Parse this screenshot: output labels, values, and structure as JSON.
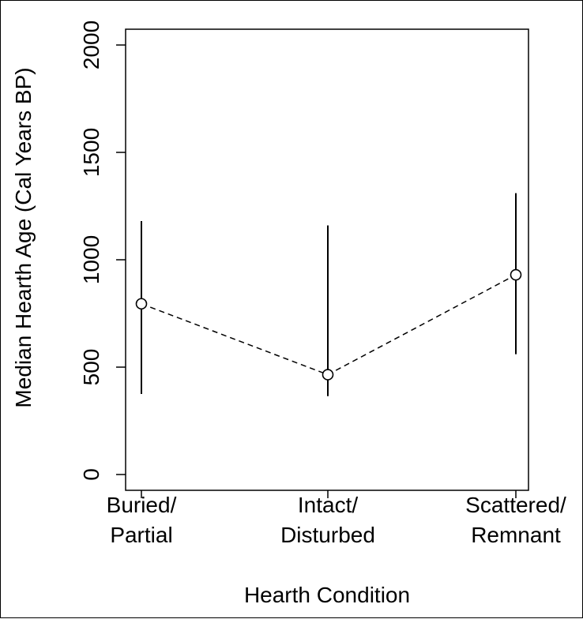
{
  "chart_data": {
    "type": "scatter",
    "title": "",
    "xlabel": "Hearth Condition",
    "ylabel": "Median Hearth Age (Cal Years BP)",
    "categories": [
      [
        "Buried/",
        "Partial"
      ],
      [
        "Intact/",
        "Disturbed"
      ],
      [
        "Scattered/",
        "Remnant"
      ]
    ],
    "series": [
      {
        "values": [
          795,
          465,
          930
        ],
        "error_low": [
          375,
          365,
          560
        ],
        "error_high": [
          1180,
          1160,
          1310
        ]
      }
    ],
    "connector": "dashed",
    "marker": "open-circle",
    "ylim": [
      0,
      2000
    ],
    "yticks": [
      0,
      500,
      1000,
      1500,
      2000
    ],
    "grid": false,
    "colors": {
      "line": "#000000",
      "background": "#ffffff"
    }
  }
}
